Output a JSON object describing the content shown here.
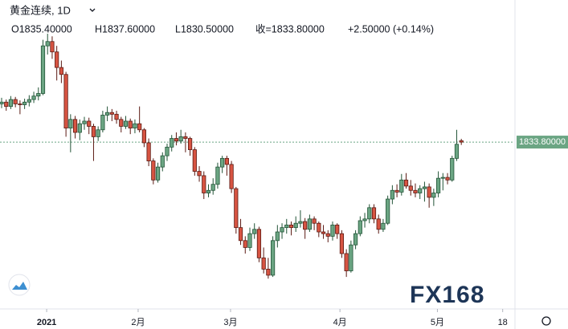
{
  "chart_data": {
    "type": "candlestick",
    "title": "黄金连续, 1D",
    "summary": [
      "O1835.40000",
      "H1837.60000",
      "L1830.50000",
      "收=1833.80000",
      "+2.50000 (+0.14%)"
    ],
    "watermark": "FX168",
    "up_color": "#6ba583",
    "down_color": "#d75442",
    "xlim": [
      -0.35,
      111.5
    ],
    "ylim": [
      1641,
      1998
    ],
    "xticks": [
      {
        "value": 9.8,
        "label": "2021"
      },
      {
        "value": 29.7,
        "label": "2月"
      },
      {
        "value": 49.8,
        "label": "3月"
      },
      {
        "value": 73.6,
        "label": "4月"
      },
      {
        "value": 94.8,
        "label": "5月"
      },
      {
        "value": 109,
        "label": "18"
      }
    ],
    "last_price": 1833.8,
    "last_price_label": "1833.80000",
    "open": [
      1878,
      1880,
      1875,
      1883,
      1878,
      1877,
      1880,
      1883,
      1887,
      1890,
      1945,
      1950,
      1938,
      1920,
      1912,
      1850,
      1860,
      1845,
      1855,
      1858,
      1852,
      1840,
      1848,
      1865,
      1868,
      1866,
      1860,
      1852,
      1858,
      1850,
      1855,
      1848,
      1833,
      1812,
      1790,
      1805,
      1818,
      1828,
      1838,
      1835,
      1840,
      1838,
      1825,
      1800,
      1795,
      1775,
      1778,
      1785,
      1805,
      1815,
      1808,
      1780,
      1735,
      1720,
      1712,
      1728,
      1733,
      1700,
      1687,
      1680,
      1720,
      1730,
      1735,
      1738,
      1735,
      1740,
      1742,
      1733,
      1745,
      1740,
      1730,
      1728,
      1725,
      1738,
      1728,
      1705,
      1685,
      1715,
      1728,
      1743,
      1745,
      1758,
      1745,
      1733,
      1740,
      1768,
      1778,
      1776,
      1790,
      1783,
      1778,
      1775,
      1780,
      1782,
      1770,
      1775,
      1792,
      1793,
      1790,
      1815,
      1835.4
    ],
    "high": [
      1885,
      1883,
      1887,
      1886,
      1882,
      1884,
      1888,
      1892,
      1897,
      1952,
      1959,
      1956,
      1945,
      1928,
      1915,
      1866,
      1864,
      1860,
      1863,
      1862,
      1855,
      1852,
      1870,
      1875,
      1872,
      1870,
      1863,
      1864,
      1861,
      1860,
      1875,
      1850,
      1838,
      1815,
      1810,
      1822,
      1832,
      1842,
      1845,
      1848,
      1845,
      1840,
      1828,
      1806,
      1800,
      1785,
      1792,
      1810,
      1818,
      1818,
      1812,
      1782,
      1745,
      1725,
      1735,
      1740,
      1736,
      1712,
      1700,
      1725,
      1738,
      1740,
      1745,
      1742,
      1748,
      1755,
      1746,
      1750,
      1748,
      1742,
      1738,
      1732,
      1742,
      1740,
      1732,
      1710,
      1720,
      1732,
      1748,
      1752,
      1762,
      1762,
      1750,
      1745,
      1772,
      1784,
      1785,
      1797,
      1798,
      1790,
      1786,
      1784,
      1788,
      1786,
      1780,
      1800,
      1798,
      1798,
      1818,
      1848,
      1837.6
    ],
    "low": [
      1873,
      1870,
      1872,
      1874,
      1866,
      1872,
      1875,
      1879,
      1882,
      1888,
      1935,
      1930,
      1905,
      1902,
      1840,
      1822,
      1838,
      1836,
      1848,
      1843,
      1812,
      1835,
      1845,
      1858,
      1858,
      1855,
      1845,
      1849,
      1843,
      1844,
      1845,
      1828,
      1806,
      1785,
      1787,
      1800,
      1812,
      1823,
      1830,
      1832,
      1822,
      1818,
      1795,
      1788,
      1768,
      1770,
      1773,
      1780,
      1798,
      1795,
      1775,
      1728,
      1715,
      1705,
      1708,
      1722,
      1695,
      1682,
      1676,
      1678,
      1712,
      1722,
      1728,
      1726,
      1730,
      1735,
      1722,
      1730,
      1732,
      1724,
      1722,
      1718,
      1720,
      1722,
      1700,
      1678,
      1683,
      1710,
      1725,
      1735,
      1740,
      1740,
      1728,
      1730,
      1738,
      1762,
      1770,
      1772,
      1780,
      1772,
      1770,
      1768,
      1765,
      1758,
      1760,
      1770,
      1778,
      1785,
      1788,
      1812,
      1830.5
    ],
    "close": [
      1880,
      1875,
      1883,
      1878,
      1877,
      1880,
      1883,
      1887,
      1890,
      1945,
      1950,
      1938,
      1920,
      1912,
      1850,
      1860,
      1845,
      1855,
      1858,
      1852,
      1840,
      1848,
      1865,
      1868,
      1866,
      1860,
      1852,
      1858,
      1850,
      1855,
      1848,
      1833,
      1812,
      1790,
      1805,
      1818,
      1828,
      1838,
      1835,
      1840,
      1838,
      1825,
      1800,
      1795,
      1775,
      1778,
      1785,
      1805,
      1815,
      1808,
      1780,
      1735,
      1720,
      1712,
      1728,
      1733,
      1700,
      1687,
      1680,
      1720,
      1730,
      1735,
      1738,
      1735,
      1740,
      1742,
      1733,
      1745,
      1740,
      1730,
      1728,
      1725,
      1738,
      1728,
      1705,
      1685,
      1715,
      1728,
      1743,
      1745,
      1758,
      1745,
      1733,
      1740,
      1768,
      1778,
      1776,
      1790,
      1783,
      1778,
      1775,
      1780,
      1782,
      1770,
      1775,
      1792,
      1793,
      1790,
      1815,
      1831.3,
      1833.8
    ]
  }
}
